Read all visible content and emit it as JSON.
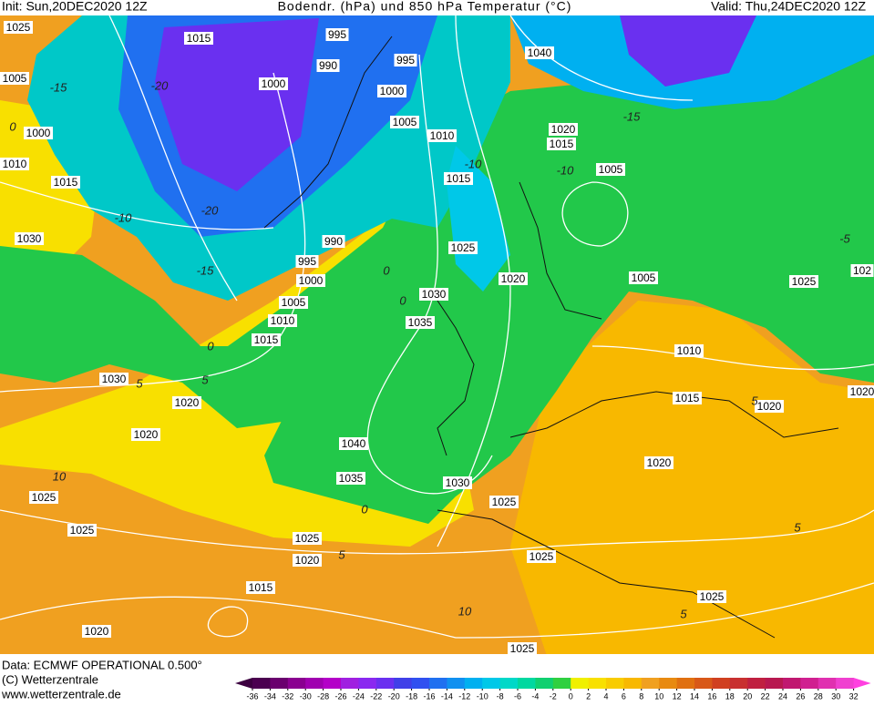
{
  "header": {
    "init": "Init: Sun,20DEC2020 12Z",
    "title": "Bodendr. (hPa) und 850 hPa Temperatur (°C)",
    "valid": "Valid: Thu,24DEC2020 12Z"
  },
  "footer": {
    "data": "Data: ECMWF OPERATIONAL 0.500°",
    "copyright": "(C) Wetterzentrale",
    "url": "www.wetterzentrale.de"
  },
  "colorbar": {
    "ticks": [
      -36,
      -34,
      -32,
      -30,
      -28,
      -26,
      -24,
      -22,
      -20,
      -18,
      -16,
      -14,
      -12,
      -10,
      -8,
      -6,
      -4,
      -2,
      0,
      2,
      4,
      6,
      8,
      10,
      12,
      14,
      16,
      18,
      20,
      22,
      24,
      26,
      28,
      30,
      32
    ],
    "colors": [
      "#4b0050",
      "#6a006e",
      "#8a0090",
      "#a000b0",
      "#b400c8",
      "#a020e0",
      "#8a28f0",
      "#6a30f0",
      "#4040e8",
      "#3050f0",
      "#2070f0",
      "#1090f0",
      "#00b0f0",
      "#00c8e8",
      "#00d8c8",
      "#00d8a0",
      "#10d070",
      "#30d040",
      "#f0f000",
      "#f8e000",
      "#f8cc00",
      "#f8b800",
      "#f0a020",
      "#e88a10",
      "#e07010",
      "#d85818",
      "#d04020",
      "#c83030",
      "#c02040",
      "#b81850",
      "#c01870",
      "#d02090",
      "#e030b0",
      "#f040d0"
    ],
    "under_color": "#3c0040",
    "over_color": "#ff40e0"
  },
  "isobar_labels": [
    "1025",
    "1015",
    "995",
    "990",
    "995",
    "1040",
    "1005",
    "1000",
    "1000",
    "1005",
    "1000",
    "1010",
    "1020",
    "1015",
    "1010",
    "1015",
    "1015",
    "1005",
    "1030",
    "990",
    "1025",
    "995",
    "1000",
    "1020",
    "1005",
    "1025",
    "1030",
    "1005",
    "1010",
    "1035",
    "1015",
    "1010",
    "1030",
    "1020",
    "1015",
    "1020",
    "1020",
    "1040",
    "1020",
    "1035",
    "1030",
    "1025",
    "1025",
    "1025",
    "1025",
    "1025",
    "1020",
    "1015",
    "1025",
    "1020",
    "1025",
    "102",
    "1020"
  ],
  "temperature_labels": [
    "-15",
    "-20",
    "0",
    "-10",
    "-15",
    "-20",
    "0",
    "0",
    "0",
    "5",
    "5",
    "0",
    "5",
    "10",
    "10",
    "5",
    "-15",
    "-10",
    "-10",
    "5",
    "5",
    "-5"
  ]
}
